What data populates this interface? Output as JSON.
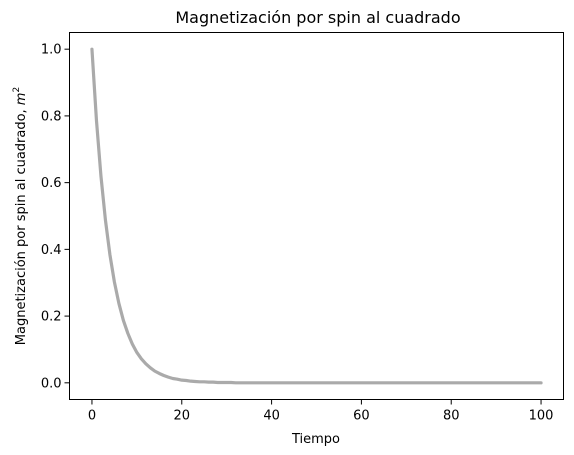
{
  "chart_data": {
    "type": "line",
    "title": "Magnetización por spin al cuadrado",
    "xlabel": "Tiempo",
    "ylabel_main": "Magnetización por spin al cuadrado, ",
    "ylabel_symbol": "m",
    "ylabel_superscript": "2",
    "xlim": [
      -5,
      105
    ],
    "ylim": [
      -0.05,
      1.05
    ],
    "xticks": [
      0,
      20,
      40,
      60,
      80,
      100
    ],
    "xtick_labels": [
      "0",
      "20",
      "40",
      "60",
      "80",
      "100"
    ],
    "yticks": [
      0.0,
      0.2,
      0.4,
      0.6,
      0.8,
      1.0
    ],
    "ytick_labels": [
      "0.0",
      "0.2",
      "0.4",
      "0.6",
      "0.8",
      "1.0"
    ],
    "grid": false,
    "series": [
      {
        "color": "#aaaaaa",
        "x": [
          0,
          1,
          2,
          3,
          4,
          5,
          6,
          7,
          8,
          9,
          10,
          11,
          12,
          13,
          14,
          15,
          16,
          17,
          18,
          19,
          20,
          21,
          22,
          23,
          24,
          25,
          26,
          27,
          28,
          29,
          30,
          31,
          32,
          33,
          34,
          35,
          36,
          37,
          38,
          39,
          40,
          41,
          42,
          43,
          44,
          45,
          46,
          47,
          48,
          49,
          50,
          51,
          52,
          53,
          54,
          55,
          56,
          57,
          58,
          59,
          60,
          61,
          62,
          63,
          64,
          65,
          66,
          67,
          68,
          69,
          70,
          71,
          72,
          73,
          74,
          75,
          76,
          77,
          78,
          79,
          80,
          81,
          82,
          83,
          84,
          85,
          86,
          87,
          88,
          89,
          90,
          91,
          92,
          93,
          94,
          95,
          96,
          97,
          98,
          99,
          100
        ],
        "y": [
          1.0,
          0.787,
          0.62,
          0.488,
          0.384,
          0.302,
          0.238,
          0.187,
          0.148,
          0.116,
          0.091,
          0.072,
          0.057,
          0.045,
          0.035,
          0.028,
          0.022,
          0.017,
          0.013,
          0.011,
          0.008,
          0.007,
          0.005,
          0.004,
          0.003,
          0.003,
          0.002,
          0.002,
          0.001,
          0.001,
          0.001,
          0.001,
          0.0,
          0.0,
          0.0,
          0.0,
          0.0,
          0.0,
          0.0,
          0.0,
          0.0,
          0.0,
          0.0,
          0.0,
          0.0,
          0.0,
          0.0,
          0.0,
          0.0,
          0.0,
          0.0,
          0.0,
          0.0,
          0.0,
          0.0,
          0.0,
          0.0,
          0.0,
          0.0,
          0.0,
          0.0,
          0.0,
          0.0,
          0.0,
          0.0,
          0.0,
          0.0,
          0.0,
          0.0,
          0.0,
          0.0,
          0.0,
          0.0,
          0.0,
          0.0,
          0.0,
          0.0,
          0.0,
          0.0,
          0.0,
          0.0,
          0.0,
          0.0,
          0.0,
          0.0,
          0.0,
          0.0,
          0.0,
          0.0,
          0.0,
          0.0,
          0.0,
          0.0,
          0.0,
          0.0,
          0.0,
          0.0,
          0.0,
          0.0,
          0.0,
          0.0
        ]
      }
    ]
  }
}
